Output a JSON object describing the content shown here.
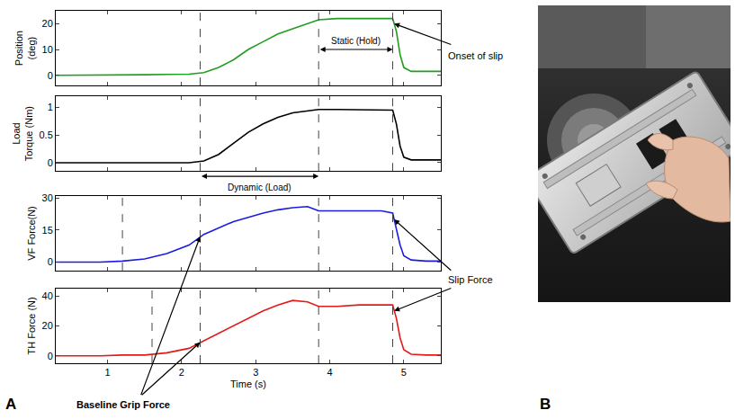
{
  "panel_labels": [
    "A",
    "B"
  ],
  "chart_data": [
    {
      "type": "line",
      "ylabel": "Position (deg)",
      "x": [
        0.3,
        0.6,
        0.9,
        1.2,
        1.5,
        1.8,
        2.1,
        2.3,
        2.5,
        2.7,
        2.9,
        3.1,
        3.3,
        3.5,
        3.7,
        3.85,
        4.1,
        4.4,
        4.7,
        4.85,
        4.9,
        4.95,
        5.0,
        5.1,
        5.3,
        5.5
      ],
      "values": [
        0,
        0,
        0,
        0,
        0.2,
        0.3,
        0.4,
        1,
        3,
        6,
        10,
        13,
        16,
        18,
        20,
        21.5,
        22,
        22,
        22,
        22,
        17,
        8,
        3,
        1.5,
        1.5,
        1.5
      ],
      "color": "#1f9e1f",
      "xlim": [
        0.3,
        5.5
      ],
      "xticks": [
        1,
        2,
        3,
        4,
        5
      ],
      "ylim": [
        -4,
        25
      ],
      "yticks": [
        0,
        10,
        20
      ],
      "grid": false,
      "tick_labels": "y",
      "vlines": [
        2.25,
        3.85,
        4.85
      ]
    },
    {
      "type": "line",
      "ylabel": "Load Torque (Nm)",
      "x": [
        0.3,
        0.6,
        0.9,
        1.2,
        1.5,
        1.8,
        2.1,
        2.3,
        2.5,
        2.7,
        2.9,
        3.1,
        3.3,
        3.5,
        3.7,
        3.85,
        4.1,
        4.4,
        4.7,
        4.85,
        4.9,
        4.95,
        5.0,
        5.1,
        5.3,
        5.5
      ],
      "values": [
        0,
        0,
        0,
        0,
        0,
        0,
        0,
        0.03,
        0.15,
        0.35,
        0.55,
        0.7,
        0.82,
        0.9,
        0.94,
        0.96,
        0.96,
        0.96,
        0.96,
        0.95,
        0.7,
        0.3,
        0.1,
        0.05,
        0.05,
        0.05
      ],
      "color": "#000000",
      "xlim": [
        0.3,
        5.5
      ],
      "xticks": [
        1,
        2,
        3,
        4,
        5
      ],
      "ylim": [
        -0.15,
        1.2
      ],
      "yticks": [
        0,
        0.5,
        1
      ],
      "grid": false,
      "tick_labels": "y",
      "vlines": [
        2.25,
        3.85,
        4.85
      ]
    },
    {
      "type": "line",
      "ylabel": "VF Force(N)",
      "x": [
        0.3,
        0.6,
        0.9,
        1.2,
        1.5,
        1.8,
        2.1,
        2.3,
        2.5,
        2.7,
        2.9,
        3.1,
        3.3,
        3.5,
        3.7,
        3.85,
        4.1,
        4.4,
        4.7,
        4.85,
        4.9,
        4.95,
        5.0,
        5.1,
        5.3,
        5.5
      ],
      "values": [
        0,
        0,
        0,
        0.5,
        1.5,
        4,
        8,
        13,
        16,
        19,
        21,
        23,
        24.5,
        25.5,
        26,
        24,
        24,
        24,
        24,
        23,
        15,
        8,
        3,
        1,
        0.5,
        0.5
      ],
      "color": "#1c1ce0",
      "xlim": [
        0.3,
        5.5
      ],
      "xticks": [
        1,
        2,
        3,
        4,
        5
      ],
      "ylim": [
        -4,
        31
      ],
      "yticks": [
        0,
        15,
        30
      ],
      "grid": false,
      "tick_labels": "y",
      "vlines": [
        1.2,
        2.25,
        3.85,
        4.85
      ]
    },
    {
      "type": "line",
      "ylabel": "TH Force (N)",
      "xlabel": "Time (s)",
      "x": [
        0.3,
        0.6,
        0.9,
        1.2,
        1.5,
        1.8,
        2.1,
        2.3,
        2.5,
        2.7,
        2.9,
        3.1,
        3.3,
        3.5,
        3.7,
        3.85,
        4.1,
        4.4,
        4.7,
        4.85,
        4.9,
        4.95,
        5.0,
        5.1,
        5.3,
        5.5
      ],
      "values": [
        0,
        0,
        0,
        0.5,
        0.5,
        2,
        5,
        10,
        15,
        20,
        25,
        30,
        34,
        37,
        36,
        33,
        33,
        34,
        34,
        34,
        25,
        12,
        4,
        1,
        0.5,
        0.5
      ],
      "color": "#e01b1b",
      "xlim": [
        0.3,
        5.5
      ],
      "xticks": [
        1,
        2,
        3,
        4,
        5
      ],
      "ylim": [
        -5,
        45
      ],
      "yticks": [
        0,
        20,
        40
      ],
      "grid": false,
      "vlines": [
        1.6,
        2.25,
        3.85,
        4.85
      ]
    }
  ],
  "annotations": [
    {
      "text": "Onset of slip",
      "targets": [
        {
          "chart": 0,
          "x": 4.87,
          "y": 20
        }
      ]
    },
    {
      "text": "Static (Hold)",
      "chart": 0,
      "span": [
        3.85,
        4.85
      ],
      "y": 10
    },
    {
      "text": "Dynamic (Load)",
      "chart": 2,
      "span": [
        2.25,
        3.85
      ]
    },
    {
      "text": "Slip Force",
      "targets": [
        {
          "chart": 2,
          "x": 4.87,
          "y": 20
        },
        {
          "chart": 3,
          "x": 4.87,
          "y": 30
        }
      ]
    },
    {
      "text": "Baseline Grip Force",
      "targets": [
        {
          "chart": 2,
          "x": 2.25,
          "y": 12
        },
        {
          "chart": 3,
          "x": 2.25,
          "y": 9
        }
      ]
    }
  ]
}
